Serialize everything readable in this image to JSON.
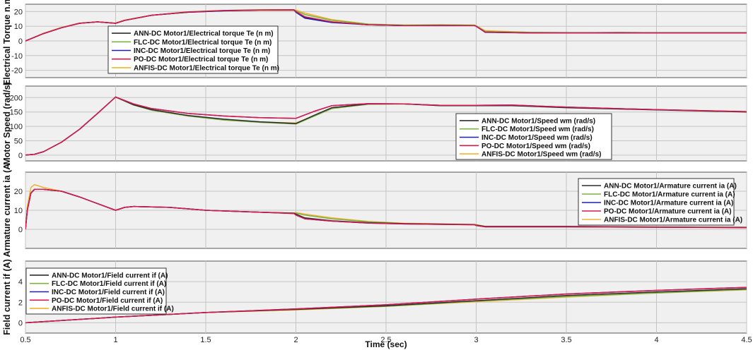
{
  "colors": {
    "ANN": "#2b2b2b",
    "FLC": "#7cb342",
    "INC": "#1f1fb4",
    "PO": "#d81b4a",
    "ANFIS": "#f2b233",
    "background": "#f0f0f0",
    "grid": "#c4c4c4"
  },
  "chart_data": [
    {
      "type": "line",
      "ylabel": "Electrical Torque n.m",
      "ylim": [
        -25,
        25
      ],
      "yticks": [
        -20,
        -10,
        0,
        10,
        20
      ],
      "xlim": [
        0.5,
        4.5
      ],
      "xticks": [
        0.5,
        1,
        1.5,
        2,
        2.5,
        3,
        3.5,
        4,
        4.5
      ],
      "show_xticklabels": false,
      "grid": true,
      "legend_position": "upper-left",
      "series": [
        {
          "name": "ANN-DC Motor1/Electrical torque Te (n m)",
          "color_key": "ANN",
          "x": [
            0.5,
            0.6,
            0.7,
            0.8,
            0.9,
            1.0,
            1.05,
            1.2,
            1.4,
            1.6,
            1.8,
            1.99,
            2.0,
            2.05,
            2.2,
            2.4,
            2.6,
            2.8,
            2.99,
            3.0,
            3.05,
            3.3,
            3.6,
            3.8,
            4.0,
            4.5
          ],
          "y": [
            0,
            5,
            9,
            12,
            13,
            12,
            14,
            17.5,
            19.5,
            20.5,
            21,
            21,
            20,
            16,
            13,
            11,
            10.5,
            10.5,
            10.5,
            10,
            6,
            5.5,
            5.5,
            5.5,
            5.5,
            5.5
          ]
        },
        {
          "name": "FLC-DC Motor1/Electrical torque Te (n m)",
          "color_key": "FLC",
          "x": [
            0.5,
            0.6,
            0.7,
            0.8,
            0.9,
            1.0,
            1.05,
            1.2,
            1.4,
            1.6,
            1.8,
            1.99,
            2.0,
            2.05,
            2.2,
            2.4,
            2.6,
            2.8,
            2.99,
            3.0,
            3.05,
            3.3,
            3.6,
            3.8,
            4.0,
            4.5
          ],
          "y": [
            0,
            5,
            9,
            12,
            13,
            12,
            14,
            17.5,
            19.8,
            20.8,
            21.2,
            21.3,
            20.5,
            18,
            14,
            11.5,
            10.8,
            11,
            10.8,
            10.2,
            6.5,
            5.8,
            5.6,
            5.8,
            5.6,
            5.6
          ]
        },
        {
          "name": "INC-DC Motor1/Electrical torque Te (n m)",
          "color_key": "INC",
          "x": [
            0.5,
            0.6,
            0.7,
            0.8,
            0.9,
            1.0,
            1.05,
            1.2,
            1.4,
            1.6,
            1.8,
            1.99,
            2.0,
            2.05,
            2.2,
            2.4,
            2.6,
            2.8,
            2.99,
            3.0,
            3.05,
            3.3,
            3.6,
            3.8,
            4.0,
            4.5
          ],
          "y": [
            0,
            5,
            9,
            12,
            13,
            12,
            14,
            17.5,
            19.6,
            20.6,
            21,
            21.1,
            19.5,
            15.5,
            12.5,
            11,
            10.5,
            10.5,
            10.5,
            10,
            5.8,
            5.5,
            5.5,
            5.5,
            5.5,
            5.5
          ]
        },
        {
          "name": "PO-DC Motor1/Electrical torque Te (n m)",
          "color_key": "PO",
          "x": [
            0.5,
            0.6,
            0.7,
            0.8,
            0.9,
            1.0,
            1.05,
            1.2,
            1.4,
            1.6,
            1.8,
            1.99,
            2.0,
            2.05,
            2.2,
            2.4,
            2.6,
            2.8,
            2.99,
            3.0,
            3.05,
            3.3,
            3.6,
            3.8,
            4.0,
            4.5
          ],
          "y": [
            0,
            5,
            9,
            12,
            13,
            12,
            14,
            17.5,
            19.7,
            20.7,
            21.1,
            21.2,
            20,
            16.5,
            13,
            11,
            10.5,
            10.6,
            10.5,
            10,
            6,
            5.5,
            5.5,
            5.6,
            5.5,
            5.5
          ]
        },
        {
          "name": "ANFIS-DC Motor1/Electrical torque Te (n m)",
          "color_key": "ANFIS",
          "x": [
            0.5,
            0.6,
            0.7,
            0.8,
            0.9,
            1.0,
            1.05,
            1.2,
            1.4,
            1.6,
            1.8,
            1.99,
            2.0,
            2.05,
            2.2,
            2.4,
            2.6,
            2.8,
            2.99,
            3.0,
            3.05,
            3.3,
            3.6,
            3.8,
            4.0,
            4.5
          ],
          "y": [
            0,
            5.2,
            9.2,
            12.2,
            13,
            12.2,
            14.2,
            17.5,
            19.5,
            20.5,
            20.8,
            20.8,
            21,
            19,
            14.5,
            11.5,
            10.5,
            11,
            10.6,
            10.2,
            7,
            5.8,
            5.6,
            5.6,
            5.6,
            5.6
          ]
        }
      ]
    },
    {
      "type": "line",
      "ylabel": "Motor Speed (rad/s)",
      "ylim": [
        -20,
        240
      ],
      "yticks": [
        0,
        50,
        100,
        150,
        200
      ],
      "xlim": [
        0.5,
        4.5
      ],
      "xticks": [
        0.5,
        1,
        1.5,
        2,
        2.5,
        3,
        3.5,
        4,
        4.5
      ],
      "show_xticklabels": false,
      "grid": true,
      "legend_position": "lower-right",
      "series": [
        {
          "name": "ANN-DC Motor1/Speed wm (rad/s)",
          "color_key": "ANN",
          "x": [
            0.5,
            0.55,
            0.6,
            0.7,
            0.8,
            0.9,
            1.0,
            1.1,
            1.2,
            1.4,
            1.6,
            1.8,
            2.0,
            2.1,
            2.2,
            2.4,
            2.6,
            2.8,
            3.0,
            3.2,
            3.5,
            4.0,
            4.5
          ],
          "y": [
            0,
            3,
            12,
            45,
            90,
            145,
            202,
            175,
            158,
            138,
            125,
            116,
            110,
            138,
            165,
            178,
            178,
            172,
            172,
            172,
            165,
            157,
            150
          ]
        },
        {
          "name": "FLC-DC Motor1/Speed wm (rad/s)",
          "color_key": "FLC",
          "x": [
            0.5,
            0.55,
            0.6,
            0.7,
            0.8,
            0.9,
            1.0,
            1.1,
            1.2,
            1.4,
            1.6,
            1.8,
            2.0,
            2.1,
            2.2,
            2.4,
            2.6,
            2.8,
            3.0,
            3.2,
            3.5,
            4.0,
            4.5
          ],
          "y": [
            0,
            3,
            12,
            45,
            90,
            145,
            202,
            174,
            156,
            136,
            122,
            114,
            108,
            135,
            162,
            177,
            178,
            173,
            172,
            173,
            166,
            158,
            151
          ]
        },
        {
          "name": "INC-DC Motor1/Speed wm (rad/s)",
          "color_key": "INC",
          "x": [
            0.5,
            0.55,
            0.6,
            0.7,
            0.8,
            0.9,
            1.0,
            1.1,
            1.2,
            1.4,
            1.6,
            1.8,
            2.0,
            2.1,
            2.2,
            2.4,
            2.6,
            2.8,
            3.0,
            3.2,
            3.5,
            4.0,
            4.5
          ],
          "y": [
            0,
            3,
            12,
            45,
            90,
            145,
            202,
            178,
            162,
            145,
            136,
            130,
            128,
            152,
            172,
            179,
            178,
            173,
            173,
            174,
            167,
            158,
            151
          ]
        },
        {
          "name": "PO-DC Motor1/Speed wm (rad/s)",
          "color_key": "PO",
          "x": [
            0.5,
            0.55,
            0.6,
            0.7,
            0.8,
            0.9,
            1.0,
            1.1,
            1.2,
            1.4,
            1.6,
            1.8,
            2.0,
            2.1,
            2.2,
            2.4,
            2.6,
            2.8,
            3.0,
            3.2,
            3.5,
            4.0,
            4.5
          ],
          "y": [
            0,
            3,
            12,
            45,
            90,
            145,
            202,
            178,
            162,
            145,
            136,
            130,
            128,
            152,
            172,
            179,
            178,
            173,
            173,
            174,
            167,
            158,
            151
          ]
        },
        {
          "name": "ANFIS-DC Motor1/Speed wm (rad/s)",
          "color_key": "ANFIS",
          "x": [
            0.5,
            0.55,
            0.6,
            0.7,
            0.8,
            0.9,
            1.0,
            1.1,
            1.2,
            1.4,
            1.6,
            1.8,
            2.0,
            2.1,
            2.2,
            2.4,
            2.6,
            2.8,
            3.0,
            3.2,
            3.5,
            4.0,
            4.5
          ],
          "y": [
            0,
            3,
            12,
            45,
            90,
            145,
            202,
            175,
            157,
            137,
            123,
            115,
            112,
            136,
            162,
            177,
            178,
            172,
            172,
            173,
            166,
            158,
            152
          ]
        }
      ]
    },
    {
      "type": "line",
      "ylabel": "Armature current ia (A",
      "ylim": [
        -10,
        30
      ],
      "yticks": [
        0,
        10,
        20
      ],
      "xlim": [
        0.5,
        4.5
      ],
      "xticks": [
        0.5,
        1,
        1.5,
        2,
        2.5,
        3,
        3.5,
        4,
        4.5
      ],
      "show_xticklabels": false,
      "grid": true,
      "legend_position": "upper-right",
      "series": [
        {
          "name": "ANN-DC Motor1/Armature current ia (A)",
          "color_key": "ANN",
          "x": [
            0.5,
            0.51,
            0.53,
            0.55,
            0.6,
            0.7,
            0.8,
            0.9,
            1.0,
            1.05,
            1.1,
            1.3,
            1.5,
            1.8,
            1.99,
            2.0,
            2.05,
            2.2,
            2.4,
            2.6,
            2.99,
            3.0,
            3.05,
            3.5,
            4.0,
            4.5
          ],
          "y": [
            0,
            10,
            19,
            21,
            21,
            20,
            17,
            13.5,
            10,
            11.5,
            12,
            11.5,
            10,
            9,
            8.5,
            8,
            6,
            4.5,
            3.5,
            3,
            2.5,
            2.2,
            1.5,
            1.5,
            1.2,
            1
          ]
        },
        {
          "name": "FLC-DC Motor1/Armature current ia (A)",
          "color_key": "FLC",
          "x": [
            0.5,
            0.51,
            0.53,
            0.55,
            0.6,
            0.7,
            0.8,
            0.9,
            1.0,
            1.05,
            1.1,
            1.3,
            1.5,
            1.8,
            1.99,
            2.0,
            2.05,
            2.2,
            2.4,
            2.6,
            2.99,
            3.0,
            3.05,
            3.5,
            4.0,
            4.5
          ],
          "y": [
            0,
            10,
            19,
            21,
            21,
            20,
            17,
            13.5,
            10,
            11.5,
            12,
            11.5,
            10,
            9,
            8.5,
            8.5,
            7.5,
            5.5,
            4,
            3,
            2.5,
            2.3,
            1.5,
            1.5,
            1.2,
            1
          ]
        },
        {
          "name": "INC-DC Motor1/Armature current ia (A)",
          "color_key": "INC",
          "x": [
            0.5,
            0.51,
            0.53,
            0.55,
            0.6,
            0.7,
            0.8,
            0.9,
            1.0,
            1.05,
            1.1,
            1.3,
            1.5,
            1.8,
            1.99,
            2.0,
            2.05,
            2.2,
            2.4,
            2.6,
            2.99,
            3.0,
            3.05,
            3.5,
            4.0,
            4.5
          ],
          "y": [
            0,
            10,
            19,
            21,
            21,
            20,
            17,
            13.5,
            10,
            11.5,
            12,
            11.5,
            10,
            9,
            8.3,
            7.5,
            5.5,
            4.3,
            3.3,
            2.8,
            2.4,
            2,
            1.3,
            1.3,
            1.1,
            0.9
          ]
        },
        {
          "name": "PO-DC Motor1/Armature current ia (A)",
          "color_key": "PO",
          "x": [
            0.5,
            0.51,
            0.53,
            0.55,
            0.6,
            0.7,
            0.8,
            0.9,
            1.0,
            1.05,
            1.1,
            1.3,
            1.5,
            1.8,
            1.99,
            2.0,
            2.05,
            2.2,
            2.4,
            2.6,
            2.99,
            3.0,
            3.05,
            3.5,
            4.0,
            4.5
          ],
          "y": [
            0,
            10,
            19,
            21,
            21,
            20,
            17,
            13.5,
            10,
            11.5,
            12,
            11.5,
            10,
            9,
            8.3,
            7.5,
            5.5,
            4.3,
            3.3,
            2.8,
            2.4,
            2,
            1.3,
            1.3,
            1.1,
            0.9
          ]
        },
        {
          "name": "ANFIS-DC Motor1/Armature current ia (A)",
          "color_key": "ANFIS",
          "x": [
            0.5,
            0.51,
            0.53,
            0.55,
            0.6,
            0.7,
            0.8,
            0.9,
            1.0,
            1.05,
            1.1,
            1.3,
            1.5,
            1.8,
            1.99,
            2.0,
            2.05,
            2.2,
            2.4,
            2.6,
            2.99,
            3.0,
            3.05,
            3.5,
            4.0,
            4.5
          ],
          "y": [
            0,
            12,
            22,
            23.5,
            22,
            20,
            17,
            13.5,
            10,
            11.5,
            12,
            11.5,
            10,
            9,
            8.6,
            8.8,
            8,
            6,
            4.2,
            3.2,
            2.6,
            2.5,
            1.6,
            1.5,
            1.3,
            1.1
          ]
        }
      ]
    },
    {
      "type": "line",
      "ylabel": "Field current if (A)",
      "ylim": [
        -1,
        6
      ],
      "yticks": [
        0,
        2,
        4
      ],
      "xlim": [
        0.5,
        4.5
      ],
      "xticks": [
        0.5,
        1,
        1.5,
        2,
        2.5,
        3,
        3.5,
        4,
        4.5
      ],
      "xticklabels": [
        "0.5",
        "1",
        "1.5",
        "2",
        "2.5",
        "3",
        "3.5",
        "4",
        "4.5"
      ],
      "show_xticklabels": true,
      "xlabel": "Time (sec)",
      "grid": true,
      "legend_position": "upper-left",
      "series": [
        {
          "name": "ANN-DC Motor1/Field current if (A)",
          "color_key": "ANN",
          "x": [
            0.5,
            1.0,
            1.5,
            2.0,
            2.5,
            3.0,
            3.5,
            4.0,
            4.5
          ],
          "y": [
            0,
            0.55,
            1.0,
            1.3,
            1.65,
            2.15,
            2.65,
            3.0,
            3.3
          ]
        },
        {
          "name": "FLC-DC Motor1/Field current if (A)",
          "color_key": "FLC",
          "x": [
            0.5,
            1.0,
            1.5,
            2.0,
            2.5,
            3.0,
            3.5,
            4.0,
            4.5
          ],
          "y": [
            0,
            0.55,
            1.0,
            1.3,
            1.6,
            2.1,
            2.55,
            2.9,
            3.25
          ]
        },
        {
          "name": "INC-DC Motor1/Field current if (A)",
          "color_key": "INC",
          "x": [
            0.5,
            1.0,
            1.5,
            2.0,
            2.5,
            3.0,
            3.5,
            4.0,
            4.5
          ],
          "y": [
            0,
            0.55,
            1.0,
            1.35,
            1.75,
            2.3,
            2.8,
            3.15,
            3.45
          ]
        },
        {
          "name": "PO-DC Motor1/Field current if (A)",
          "color_key": "PO",
          "x": [
            0.5,
            1.0,
            1.5,
            2.0,
            2.5,
            3.0,
            3.5,
            4.0,
            4.5
          ],
          "y": [
            0,
            0.55,
            1.0,
            1.35,
            1.75,
            2.3,
            2.8,
            3.15,
            3.45
          ]
        },
        {
          "name": "ANFIS-DC Motor1/Field current if (A)",
          "color_key": "ANFIS",
          "x": [
            0.5,
            1.0,
            1.5,
            2.0,
            2.5,
            3.0,
            3.5,
            4.0,
            4.5
          ],
          "y": [
            0,
            0.55,
            1.0,
            1.25,
            1.6,
            2.05,
            2.5,
            2.9,
            3.2
          ]
        }
      ]
    }
  ]
}
